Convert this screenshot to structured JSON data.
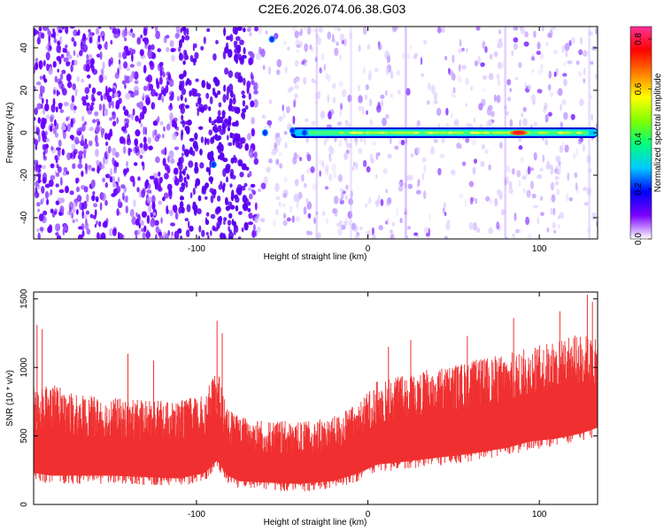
{
  "title": "C2E6.2026.074.06.38.G03",
  "chart_data": [
    {
      "type": "heatmap",
      "name": "spectrogram",
      "xlabel": "Height of straight line (km)",
      "ylabel": "Frequency (Hz)",
      "xlim": [
        -195,
        134
      ],
      "ylim": [
        -50,
        50
      ],
      "xticks": [
        -100,
        0,
        100
      ],
      "yticks": [
        -40,
        -20,
        0,
        20,
        40
      ],
      "colorbar": {
        "label": "Normalized spectral amplitude",
        "range": [
          0.0,
          0.85
        ],
        "ticks": [
          0.0,
          0.2,
          0.4,
          0.6,
          0.8
        ],
        "colors": [
          "#ffffff",
          "#7a00ff",
          "#0000ff",
          "#00c8ff",
          "#00ff80",
          "#80ff00",
          "#ffff00",
          "#ff8000",
          "#ff0000",
          "#ff3399"
        ]
      },
      "features": {
        "carrier_line": {
          "freq_hz": 0,
          "x_start_km": -45,
          "x_end_km": 134,
          "peak_x_km": 88,
          "peak_amplitude": 0.85
        },
        "noise_band_strong": {
          "x_start_km": -195,
          "x_end_km": -65,
          "amplitude": 0.1
        },
        "noise_band_weak": {
          "x_start_km": -65,
          "x_end_km": 134,
          "amplitude": 0.03
        }
      }
    },
    {
      "type": "line",
      "name": "snr",
      "xlabel": "Height of straight line (km)",
      "ylabel": "SNR (10 * v/v)",
      "xlim": [
        -195,
        134
      ],
      "ylim": [
        0,
        1550
      ],
      "xticks": [
        -100,
        0,
        100
      ],
      "yticks": [
        0,
        500,
        1000,
        1500
      ],
      "color": "#f03030",
      "envelope": {
        "x": [
          -195,
          -185,
          -170,
          -150,
          -130,
          -110,
          -95,
          -88,
          -82,
          -75,
          -60,
          -40,
          -20,
          -5,
          5,
          20,
          40,
          60,
          80,
          95,
          110,
          125,
          134
        ],
        "base": [
          170,
          150,
          150,
          150,
          140,
          130,
          170,
          260,
          150,
          110,
          100,
          90,
          110,
          170,
          230,
          250,
          280,
          310,
          350,
          400,
          420,
          460,
          500
        ],
        "top": [
          850,
          900,
          800,
          780,
          760,
          760,
          800,
          1000,
          700,
          650,
          620,
          600,
          640,
          750,
          900,
          950,
          1000,
          1050,
          1100,
          1150,
          1200,
          1250,
          1200
        ],
        "spikes": [
          [
            -193,
            1310
          ],
          [
            -190,
            1280
          ],
          [
            -140,
            1100
          ],
          [
            -125,
            1050
          ],
          [
            -88,
            1340
          ],
          [
            -85,
            1250
          ],
          [
            12,
            1150
          ],
          [
            25,
            1200
          ],
          [
            58,
            1230
          ],
          [
            85,
            1360
          ],
          [
            112,
            1410
          ],
          [
            128,
            1530
          ],
          [
            131,
            1480
          ]
        ]
      }
    }
  ]
}
